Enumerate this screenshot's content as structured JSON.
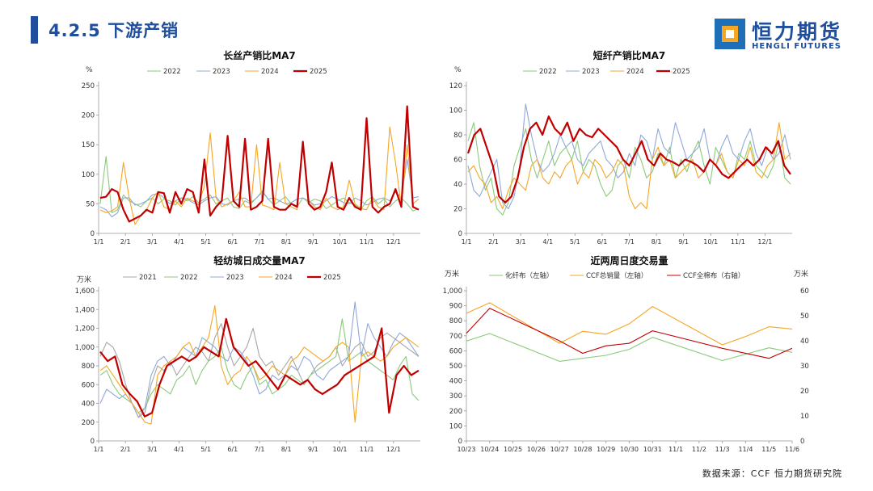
{
  "header": {
    "title": "4.2.5 下游产销"
  },
  "logo": {
    "name": "恒力期货",
    "sub": "HENGLI FUTURES",
    "color_primary": "#1f6fb8",
    "color_accent": "#f5a623"
  },
  "source": "数据来源：CCF  恒力期货研究院",
  "chart_data": [
    {
      "id": "chart1",
      "type": "line",
      "title": "长丝产销比MA7",
      "ylabel": "%",
      "ylim": [
        0,
        250
      ],
      "yticks": [
        0,
        50,
        100,
        150,
        200,
        250
      ],
      "xlabels": [
        "1/1",
        "2/1",
        "3/1",
        "4/1",
        "5/1",
        "6/1",
        "7/1",
        "8/1",
        "9/1",
        "10/1",
        "11/1",
        "12/1"
      ],
      "series": [
        {
          "name": "2022",
          "color": "#8cc97a",
          "width": 1.1,
          "values": [
            50,
            130,
            35,
            40,
            65,
            55,
            50,
            45,
            55,
            60,
            50,
            58,
            55,
            48,
            60,
            55,
            62,
            52,
            58,
            65,
            50,
            55,
            60,
            45,
            42,
            55,
            50,
            60,
            72,
            58,
            48,
            55,
            62,
            50,
            45,
            60,
            52,
            58,
            55,
            42,
            48,
            55,
            60,
            52,
            48,
            40,
            55,
            62,
            50,
            58,
            45,
            55,
            60,
            50,
            38,
            42
          ]
        },
        {
          "name": "2023",
          "color": "#8fa8d8",
          "width": 1.1,
          "values": [
            45,
            40,
            28,
            35,
            60,
            60,
            48,
            50,
            55,
            65,
            68,
            60,
            50,
            55,
            60,
            58,
            52,
            48,
            55,
            60,
            62,
            50,
            48,
            55,
            58,
            60,
            52,
            60,
            70,
            58,
            60,
            55,
            50,
            52,
            58,
            60,
            55,
            48,
            50,
            55,
            62,
            58,
            52,
            50,
            60,
            55,
            48,
            52,
            58,
            60,
            55,
            70,
            60,
            125,
            60,
            62
          ]
        },
        {
          "name": "2024",
          "color": "#f5a623",
          "width": 1.1,
          "values": [
            40,
            35,
            38,
            45,
            120,
            60,
            15,
            30,
            40,
            60,
            70,
            45,
            40,
            55,
            45,
            60,
            55,
            50,
            80,
            170,
            60,
            45,
            50,
            55,
            70,
            45,
            45,
            150,
            48,
            45,
            40,
            120,
            50,
            45,
            40,
            150,
            55,
            45,
            40,
            60,
            45,
            40,
            45,
            90,
            50,
            42,
            40,
            60,
            45,
            40,
            180,
            120,
            45,
            150,
            50,
            58
          ]
        },
        {
          "name": "2025",
          "color": "#c00000",
          "width": 2.2,
          "values": [
            60,
            62,
            75,
            70,
            40,
            20,
            25,
            30,
            40,
            35,
            70,
            68,
            35,
            70,
            50,
            75,
            70,
            35,
            125,
            30,
            45,
            55,
            165,
            55,
            45,
            160,
            40,
            45,
            55,
            160,
            45,
            40,
            40,
            50,
            45,
            155,
            50,
            40,
            45,
            70,
            120,
            45,
            40,
            60,
            45,
            40,
            195,
            45,
            35,
            45,
            50,
            75,
            45,
            215,
            45,
            40
          ]
        }
      ]
    },
    {
      "id": "chart2",
      "type": "line",
      "title": "短纤产销比MA7",
      "ylabel": "%",
      "ylim": [
        0,
        120
      ],
      "yticks": [
        0,
        20,
        40,
        60,
        80,
        100,
        120
      ],
      "xlabels": [
        "1/1",
        "2/1",
        "3/1",
        "4/1",
        "5/1",
        "6/1",
        "7/1",
        "8/1",
        "9/1",
        "10/1",
        "11/1",
        "12/1"
      ],
      "series": [
        {
          "name": "2022",
          "color": "#8cc97a",
          "width": 1.1,
          "values": [
            75,
            90,
            55,
            35,
            45,
            20,
            15,
            25,
            55,
            70,
            85,
            60,
            45,
            60,
            75,
            55,
            65,
            70,
            60,
            75,
            50,
            60,
            55,
            40,
            30,
            35,
            55,
            60,
            45,
            70,
            60,
            45,
            50,
            65,
            55,
            70,
            45,
            60,
            50,
            65,
            75,
            55,
            40,
            70,
            60,
            50,
            45,
            65,
            60,
            75,
            55,
            50,
            45,
            55,
            75,
            45,
            40
          ]
        },
        {
          "name": "2023",
          "color": "#8fa8d8",
          "width": 1.1,
          "values": [
            55,
            35,
            30,
            40,
            50,
            60,
            25,
            20,
            30,
            55,
            105,
            80,
            60,
            50,
            55,
            65,
            80,
            70,
            75,
            60,
            55,
            65,
            70,
            75,
            60,
            55,
            45,
            50,
            65,
            55,
            80,
            75,
            60,
            85,
            70,
            65,
            90,
            75,
            60,
            65,
            70,
            85,
            60,
            55,
            70,
            80,
            65,
            60,
            75,
            85,
            65,
            55,
            70,
            60,
            65,
            80,
            60
          ]
        },
        {
          "name": "2024",
          "color": "#f5a623",
          "width": 1.1,
          "values": [
            50,
            55,
            45,
            40,
            25,
            30,
            20,
            35,
            45,
            40,
            35,
            55,
            60,
            45,
            40,
            50,
            45,
            55,
            60,
            40,
            50,
            45,
            60,
            55,
            45,
            50,
            60,
            55,
            30,
            20,
            25,
            20,
            60,
            70,
            55,
            60,
            45,
            50,
            55,
            60,
            45,
            50,
            60,
            55,
            65,
            50,
            45,
            60,
            55,
            70,
            50,
            45,
            55,
            60,
            90,
            60,
            65
          ]
        },
        {
          "name": "2025",
          "color": "#c00000",
          "width": 2.2,
          "values": [
            65,
            80,
            85,
            70,
            55,
            30,
            25,
            30,
            45,
            70,
            85,
            90,
            80,
            95,
            85,
            80,
            90,
            75,
            85,
            80,
            78,
            85,
            80,
            75,
            70,
            60,
            55,
            65,
            75,
            60,
            55,
            65,
            60,
            58,
            55,
            60,
            58,
            55,
            50,
            60,
            55,
            48,
            45,
            50,
            55,
            60,
            55,
            60,
            70,
            65,
            75,
            55,
            48
          ]
        }
      ]
    },
    {
      "id": "chart3",
      "type": "line",
      "title": "轻纺城日成交量MA7",
      "ylabel": "万米",
      "ylim": [
        0,
        1600
      ],
      "yticks": [
        0,
        200,
        400,
        600,
        800,
        1000,
        1200,
        1400,
        1600
      ],
      "xlabels": [
        "1/1",
        "2/1",
        "3/1",
        "4/1",
        "5/1",
        "6/1",
        "7/1",
        "8/1",
        "9/1",
        "10/1",
        "11/1",
        "12/1"
      ],
      "series": [
        {
          "name": "2021",
          "color": "#a6a6a6",
          "width": 1.1,
          "values": [
            900,
            1050,
            1000,
            850,
            600,
            400,
            250,
            300,
            600,
            800,
            750,
            850,
            700,
            800,
            900,
            1000,
            950,
            850,
            1100,
            1250,
            1000,
            800,
            900,
            1000,
            1200,
            900,
            800,
            850,
            700,
            800,
            900,
            750,
            600,
            700,
            800,
            850,
            900,
            1000,
            800,
            900,
            1000,
            1050,
            900,
            950,
            1100,
            1150,
            1100,
            1050,
            1000,
            950,
            900
          ]
        },
        {
          "name": "2022",
          "color": "#8cc97a",
          "width": 1.1,
          "values": [
            700,
            750,
            600,
            500,
            450,
            400,
            300,
            350,
            500,
            600,
            550,
            500,
            650,
            700,
            800,
            600,
            750,
            850,
            900,
            1000,
            750,
            600,
            550,
            700,
            800,
            600,
            650,
            500,
            550,
            600,
            700,
            650,
            600,
            700,
            750,
            800,
            850,
            900,
            1300,
            850,
            900,
            950,
            850,
            800,
            750,
            700,
            650,
            800,
            900,
            500,
            430
          ]
        },
        {
          "name": "2023",
          "color": "#8fa8d8",
          "width": 1.1,
          "values": [
            400,
            550,
            500,
            450,
            500,
            400,
            250,
            350,
            700,
            850,
            900,
            800,
            900,
            1000,
            950,
            900,
            1100,
            1050,
            1000,
            900,
            850,
            1000,
            950,
            850,
            700,
            500,
            550,
            700,
            650,
            700,
            800,
            750,
            900,
            850,
            700,
            650,
            750,
            800,
            850,
            900,
            1480,
            900,
            1250,
            1100,
            1000,
            900,
            1050,
            1150,
            1100,
            1000,
            900
          ]
        },
        {
          "name": "2024",
          "color": "#f5a623",
          "width": 1.1,
          "values": [
            750,
            800,
            700,
            600,
            500,
            400,
            300,
            200,
            180,
            700,
            800,
            850,
            900,
            1000,
            1050,
            900,
            1000,
            1100,
            1440,
            800,
            600,
            700,
            750,
            900,
            800,
            650,
            700,
            800,
            750,
            700,
            850,
            900,
            1000,
            950,
            900,
            850,
            900,
            1000,
            1050,
            1000,
            200,
            900,
            950,
            900,
            850,
            900,
            1000,
            1050,
            1100,
            1050,
            1000
          ]
        },
        {
          "name": "2025",
          "color": "#c00000",
          "width": 2.2,
          "values": [
            950,
            850,
            900,
            600,
            500,
            420,
            260,
            300,
            600,
            800,
            850,
            900,
            850,
            900,
            1000,
            950,
            900,
            1300,
            1000,
            900,
            800,
            850,
            750,
            650,
            550,
            700,
            650,
            600,
            650,
            550,
            500,
            550,
            600,
            700,
            750,
            800,
            850,
            900,
            1200,
            300,
            700,
            800,
            700,
            750
          ]
        }
      ]
    },
    {
      "id": "chart4",
      "type": "line",
      "title": "近两周日度交易量",
      "ylabel_left": "万米",
      "ylabel_right": "万米",
      "ylim_left": [
        0,
        1000
      ],
      "yticks_left": [
        0,
        100,
        200,
        300,
        400,
        500,
        600,
        700,
        800,
        900,
        1000
      ],
      "ylim_right": [
        0,
        60
      ],
      "yticks_right": [
        0,
        10,
        20,
        30,
        40,
        50,
        60
      ],
      "xlabels": [
        "10/23",
        "10/24",
        "10/25",
        "10/26",
        "10/27",
        "10/28",
        "10/29",
        "10/30",
        "10/31",
        "11/1",
        "11/2",
        "11/3",
        "11/4",
        "11/5",
        "11/6"
      ],
      "series": [
        {
          "name": "化纤布（左轴）",
          "axis": "left",
          "color": "#8cc97a",
          "width": 1.1,
          "points": [
            [
              0,
              665
            ],
            [
              1,
              715
            ],
            [
              4,
              530
            ],
            [
              6,
              570
            ],
            [
              7,
              610
            ],
            [
              8,
              690
            ],
            [
              11,
              535
            ],
            [
              13,
              620
            ],
            [
              14,
              590
            ]
          ]
        },
        {
          "name": "CCF总销量（左轴）",
          "axis": "left",
          "color": "#f5a623",
          "width": 1.1,
          "points": [
            [
              0,
              850
            ],
            [
              1,
              920
            ],
            [
              4,
              650
            ],
            [
              5,
              730
            ],
            [
              6,
              710
            ],
            [
              7,
              780
            ],
            [
              8,
              895
            ],
            [
              11,
              640
            ],
            [
              12,
              695
            ],
            [
              13,
              760
            ],
            [
              14,
              745
            ]
          ]
        },
        {
          "name": "CCF全棉布（右轴）",
          "axis": "right",
          "color": "#c00000",
          "width": 1.1,
          "points": [
            [
              0,
              43
            ],
            [
              1,
              53
            ],
            [
              4,
              40
            ],
            [
              5,
              35
            ],
            [
              6,
              38
            ],
            [
              7,
              39
            ],
            [
              8,
              44
            ],
            [
              11,
              37
            ],
            [
              13,
              33
            ],
            [
              14,
              37
            ]
          ]
        }
      ]
    }
  ]
}
